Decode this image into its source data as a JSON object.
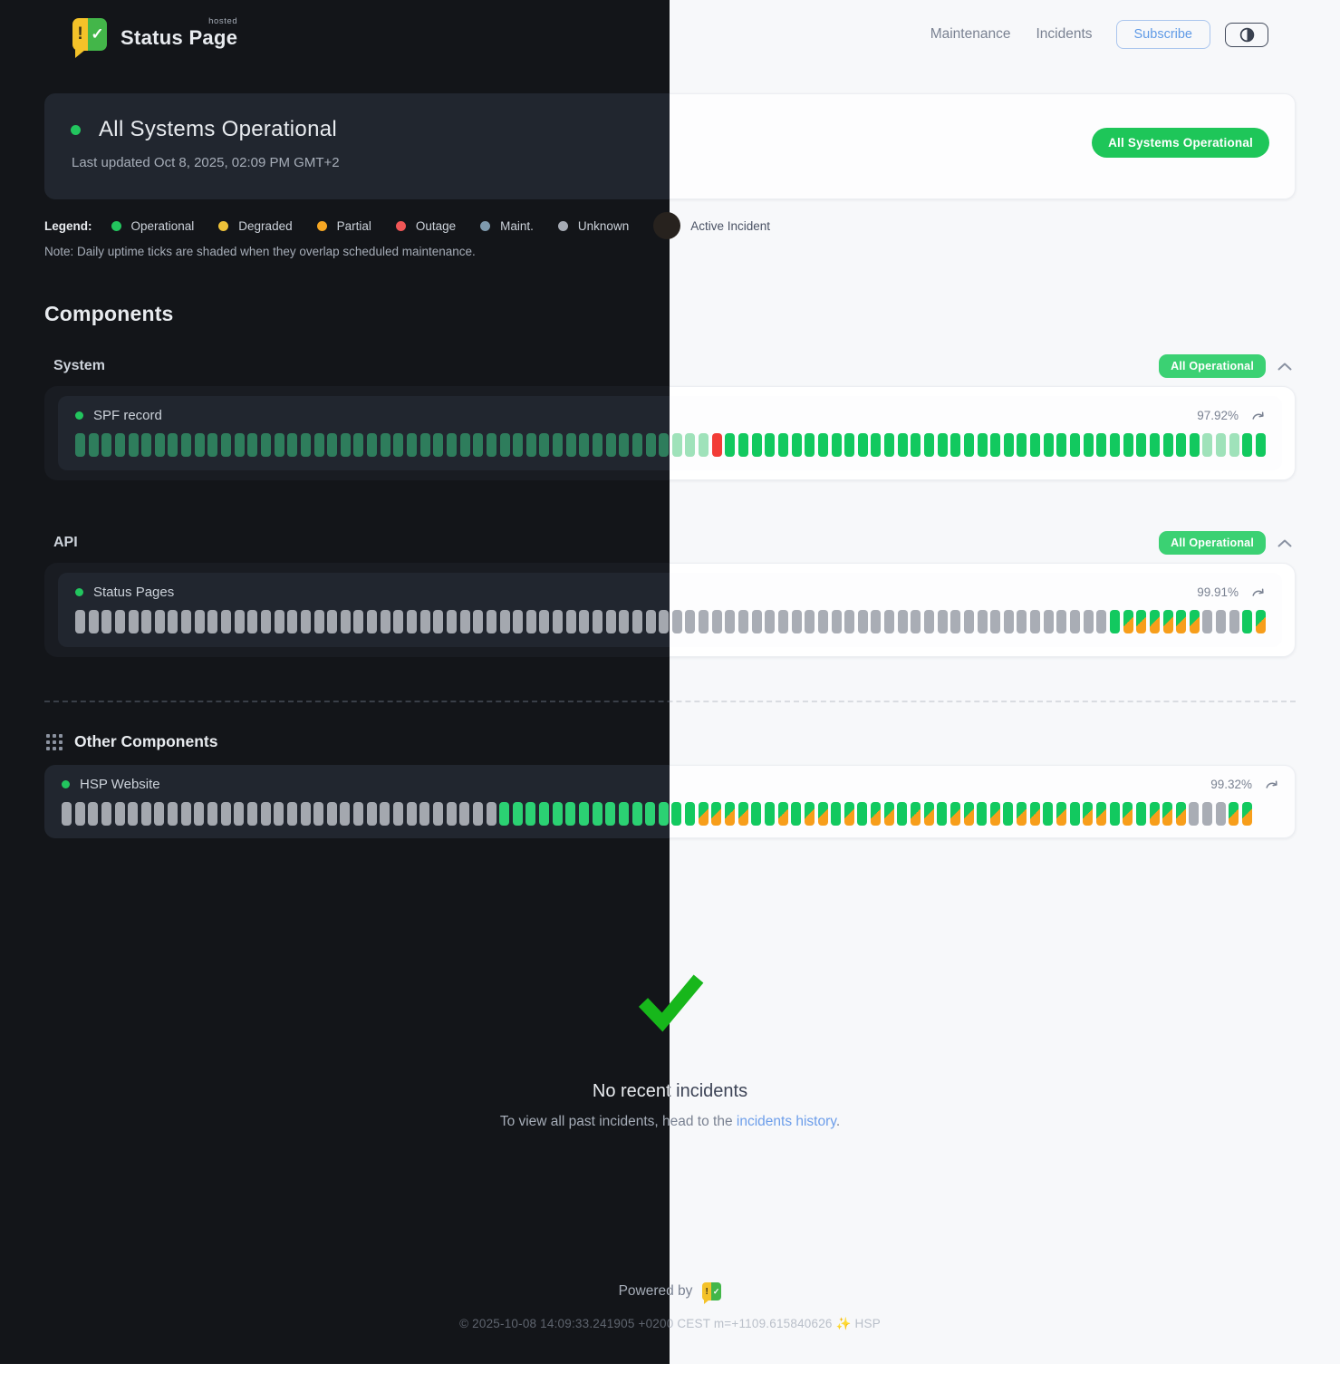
{
  "header": {
    "brand": {
      "name": "Status Page",
      "hosted": "hosted",
      "logo_left_symbol": "!",
      "logo_right_symbol": "✓"
    },
    "nav": [
      "Maintenance",
      "Incidents"
    ],
    "subscribe_label": "Subscribe",
    "theme_toggle_icon": "half-circle-contrast-icon"
  },
  "banner": {
    "title": "All Systems Operational",
    "last_updated": "Last updated Oct 8, 2025, 02:09 PM GMT+2",
    "badge": "All Systems Operational"
  },
  "legend": {
    "label": "Legend:",
    "items": [
      {
        "label": "Operational",
        "color": "#23c55e"
      },
      {
        "label": "Degraded",
        "color": "#eec239"
      },
      {
        "label": "Partial",
        "color": "#f5a623"
      },
      {
        "label": "Outage",
        "color": "#f05656"
      },
      {
        "label": "Maint.",
        "color": "#7e99ad"
      },
      {
        "label": "Unknown",
        "color": "#a6abb4"
      },
      {
        "label": "Active Incident",
        "color": "#27221e",
        "large": true
      }
    ],
    "note": "Note: Daily uptime ticks are shaded when they overlap scheduled maintenance."
  },
  "components": {
    "title": "Components",
    "tick_legend": {
      "o": "operational",
      "s": "operational-shaded-maintenance",
      "x": "outage",
      "u": "unknown",
      "p": "operational-partial-shaded"
    },
    "groups": [
      {
        "name": "System",
        "badge": "All Operational",
        "rows": [
          {
            "name": "SPF record",
            "uptime": "97.92%",
            "ticks": "ooooooooooooooooooooooooooooooooooooooooooooosssxoooooooooooooooooooooooooooooooooooosssoo"
          }
        ]
      },
      {
        "name": "API",
        "badge": "All Operational",
        "rows": [
          {
            "name": "Status Pages",
            "uptime": "99.91%",
            "ticks": "uuuuuuuuuuuuuuuuuuuuuuuuuuuuuuuuuuuuuuuuuuuuuuuuuuuuuuuuuuuuuuuuuuuuuuuuuuuuuuoppppppuuuop"
          }
        ]
      }
    ],
    "other": {
      "title": "Other Components",
      "rows": [
        {
          "name": "HSP Website",
          "uptime": "99.32%",
          "ticks": "uuuuuuuuuuuuuuuuuuuuuuuuuuuuuuuuuoooooooooooooooppppoopoppopoppoppoppopoppopoppopopppuuupp"
        }
      ]
    }
  },
  "incidents": {
    "title": "No recent incidents",
    "text_prefix": "To view all past incidents, head to the ",
    "link_label": "incidents history",
    "text_suffix": "."
  },
  "footer": {
    "powered_by": "Powered by",
    "copyright": "© 2025-10-08 14:09:33.241905 +0200 CEST m=+1109.615840626 ✨ HSP"
  },
  "colors": {
    "page_badge_green": "#1ec659",
    "group_badge_green": "#3bd173",
    "tick_operational_light": "#12c95f",
    "tick_operational_dark_muted": "#2e7d5c",
    "tick_shaded_green": "#9fe2ba",
    "tick_outage_red": "#f23c37",
    "tick_unknown_gray": "#a9adb5",
    "tick_partial_orange": "#f79e1b",
    "link_blue": "#6d9eea",
    "check_green": "#17b71b",
    "logo_yellow": "#f4c229",
    "logo_green": "#43b649",
    "subscribe_blue": "#5f9ae6",
    "dark_background": "#131519",
    "light_background": "#f7f8fa"
  }
}
